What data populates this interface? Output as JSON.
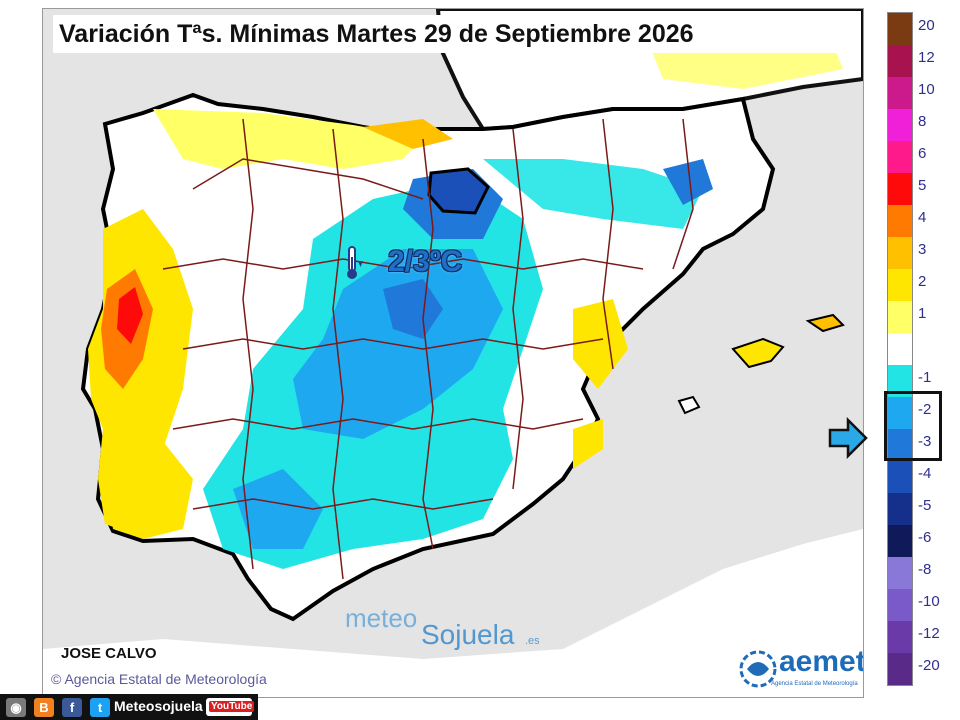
{
  "header": {
    "title": "Variación Tªs. Mínimas Martes 29 de Septiembre 2026"
  },
  "annotation": {
    "temperature_label": "2/3ºC",
    "icon": "thermometer-down-icon"
  },
  "footer": {
    "author": "JOSE CALVO",
    "copyright": "Agencia Estatal de Meteorología",
    "copyright_symbol": "©"
  },
  "watermark": {
    "part1": "meteo",
    "part2": "Sojuela",
    "suffix": ".es"
  },
  "aemet_logo": {
    "name": "aemet",
    "subtitle": "Agencia Estatal de Meteorología"
  },
  "legend": {
    "highlighted_range": [
      "-2",
      "-3"
    ],
    "items": [
      {
        "label": "20",
        "color": "#7a3a12"
      },
      {
        "label": "12",
        "color": "#a8124e"
      },
      {
        "label": "10",
        "color": "#cc1a8c"
      },
      {
        "label": "8",
        "color": "#f020d8"
      },
      {
        "label": "6",
        "color": "#ff1a8c"
      },
      {
        "label": "5",
        "color": "#ff0a0a"
      },
      {
        "label": "4",
        "color": "#ff7a00"
      },
      {
        "label": "3",
        "color": "#ffc000"
      },
      {
        "label": "2",
        "color": "#ffe600"
      },
      {
        "label": "1",
        "color": "#ffff66"
      },
      {
        "label": "",
        "color": "#ffffff"
      },
      {
        "label": "-1",
        "color": "#22e4e4"
      },
      {
        "label": "-2",
        "color": "#1ea8f0"
      },
      {
        "label": "-3",
        "color": "#2078d8"
      },
      {
        "label": "-4",
        "color": "#1a50b8"
      },
      {
        "label": "-5",
        "color": "#14308a"
      },
      {
        "label": "-6",
        "color": "#101a5a"
      },
      {
        "label": "-8",
        "color": "#8a78d8"
      },
      {
        "label": "-10",
        "color": "#7a5ac8"
      },
      {
        "label": "-12",
        "color": "#6a3aa8"
      },
      {
        "label": "-20",
        "color": "#5a2a88"
      }
    ]
  },
  "social": {
    "name": "Meteosojuela",
    "icons": [
      "instagram-icon",
      "blogger-icon",
      "facebook-icon",
      "twitter-icon",
      "youtube-icon"
    ],
    "youtube_label": "YouTube"
  },
  "colors": {
    "land": "#ffffff",
    "sea": "#e4e4e4",
    "border": "#7a1a1a",
    "coast": "#000000"
  }
}
